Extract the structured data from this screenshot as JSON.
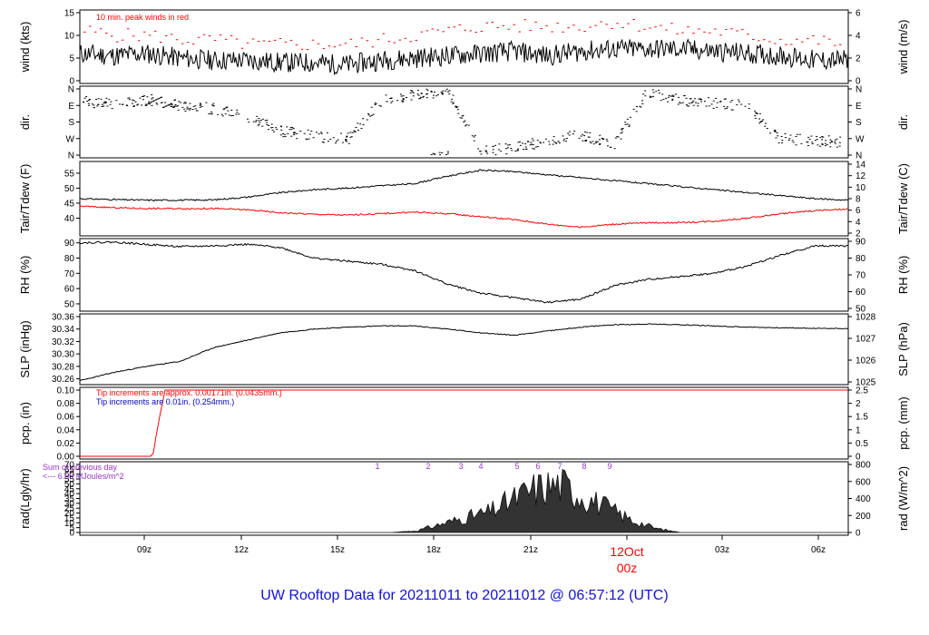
{
  "title": "UW Rooftop Data for 20211011  to  20211012 @ 06:57:12  (UTC)",
  "colors": {
    "wind": "#000000",
    "peak": "#ff0000",
    "tdew": "#ff0000",
    "pcp": "#ff0000",
    "note_blue": "#0000cc",
    "rad_note": "#9933cc",
    "date_label": "#ff0000",
    "title": "#1010dd"
  },
  "chart_data": [
    {
      "type": "line",
      "panel": "wind",
      "ylabel_left": "wind (kts)",
      "ylabel_right": "wind (m/s)",
      "ylim": [
        0,
        15
      ],
      "yticks_left": [
        "0",
        "5",
        "10",
        "15"
      ],
      "yticks_right": [
        "0",
        "2",
        "4",
        "6"
      ],
      "annotation": "10 min. peak winds in red",
      "series": [
        {
          "values": [
            6,
            5.5,
            6,
            5,
            4.5,
            4.5,
            4,
            4,
            3.5,
            4.5,
            5,
            5.5,
            6,
            6.5,
            5.5,
            6.5,
            7,
            7,
            7,
            6.5,
            6,
            5.5,
            4.5,
            4.5
          ]
        },
        {
          "values": [
            11,
            10,
            10,
            9,
            9,
            8,
            8,
            8,
            8,
            9,
            10,
            11,
            12,
            12,
            12,
            12,
            13,
            12,
            11,
            11,
            10,
            9,
            9,
            8
          ]
        }
      ]
    },
    {
      "type": "scatter",
      "panel": "dir",
      "ylabel_left": "dir.",
      "ylabel_right": "dir.",
      "yticks_left": [
        "N",
        "W",
        "S",
        "E",
        "N"
      ],
      "yticks_right": [
        "N",
        "W",
        "S",
        "E",
        "N"
      ],
      "series": [
        {
          "values": [
            290,
            280,
            300,
            270,
            250,
            200,
            130,
            100,
            90,
            300,
            330,
            350,
            20,
            40,
            80,
            110,
            60,
            340,
            300,
            280,
            270,
            90,
            80,
            70
          ]
        }
      ]
    },
    {
      "type": "line",
      "panel": "temperature",
      "ylabel_left": "Tair/Tdew (F)",
      "ylabel_right": "Tair/Tdew (C)",
      "ylim": [
        35,
        58
      ],
      "yticks_left": [
        "40",
        "45",
        "50",
        "55"
      ],
      "yticks_right": [
        "2",
        "4",
        "6",
        "8",
        "10",
        "12",
        "14"
      ],
      "series": [
        {
          "values": [
            46.5,
            46.2,
            46.0,
            46.0,
            46.1,
            47.0,
            48.5,
            49.5,
            50.0,
            50.8,
            51.5,
            54.0,
            56.0,
            55.5,
            54.5,
            53.5,
            52.5,
            51.5,
            50.5,
            49.5,
            48.5,
            47.5,
            46.5,
            46.0
          ]
        },
        {
          "values": [
            44.0,
            43.5,
            43.2,
            43.2,
            43.2,
            42.8,
            41.8,
            41.3,
            41.0,
            41.5,
            42.0,
            41.5,
            40.5,
            39.5,
            38.0,
            37.0,
            38.0,
            38.5,
            38.5,
            39.0,
            40.0,
            41.5,
            42.5,
            43.0
          ]
        }
      ]
    },
    {
      "type": "line",
      "panel": "rh",
      "ylabel_left": "RH (%)",
      "ylabel_right": "RH (%)",
      "ylim": [
        47,
        91
      ],
      "yticks_left": [
        "50",
        "60",
        "70",
        "80",
        "90"
      ],
      "yticks_right": [
        "50",
        "60",
        "70",
        "80",
        "90"
      ],
      "series": [
        {
          "values": [
            90,
            90.5,
            89,
            87.5,
            88,
            89,
            87,
            80,
            78,
            76,
            72,
            63,
            57,
            54,
            51,
            53,
            62,
            66,
            68,
            70,
            75,
            82,
            88,
            88
          ]
        }
      ]
    },
    {
      "type": "line",
      "panel": "slp",
      "ylabel_left": "SLP (inHg)",
      "ylabel_right": "SLP (hPa)",
      "ylim": [
        30.255,
        30.36
      ],
      "yticks_left": [
        "30.26",
        "30.28",
        "30.30",
        "30.32",
        "30.34",
        "30.36"
      ],
      "yticks_right": [
        "1025",
        "1026",
        "1027",
        "1028"
      ],
      "series": [
        {
          "values": [
            30.257,
            30.27,
            30.28,
            30.288,
            30.31,
            30.322,
            30.334,
            30.34,
            30.343,
            30.345,
            30.345,
            30.34,
            30.334,
            30.33,
            30.337,
            30.343,
            30.347,
            30.348,
            30.347,
            30.345,
            30.343,
            30.342,
            30.341,
            30.341
          ]
        }
      ]
    },
    {
      "type": "line",
      "panel": "pcp",
      "ylabel_left": "pcp. (in)",
      "ylabel_right": "pcp. (mm)",
      "ylim": [
        0,
        0.1
      ],
      "yticks_left": [
        "0.00",
        "0.02",
        "0.04",
        "0.06",
        "0.08",
        "0.10"
      ],
      "yticks_right": [
        "0",
        "0.5",
        "1",
        "1.5",
        "2",
        "2.5"
      ],
      "annotation_red": "Tip increments are approx. 0.00171in. (0.0435mm.)",
      "annotation_blue": "Tip increments are 0.01in. (0.254mm.)",
      "series": [
        {
          "values": [
            0,
            0,
            0,
            0.075,
            0.1,
            0.1,
            0.1,
            0.1,
            0.1,
            0.1,
            0.1,
            0.1,
            0.1,
            0.1,
            0.1,
            0.1,
            0.1,
            0.1,
            0.1,
            0.1,
            0.1,
            0.1,
            0.1,
            0.1
          ]
        }
      ]
    },
    {
      "type": "area",
      "panel": "rad",
      "ylabel_left": "rad(Lgly/hr)",
      "ylabel_right": "rad (W/m^2)",
      "ylim": [
        0,
        70
      ],
      "yticks_left": [
        "0",
        "5",
        "10",
        "15",
        "20",
        "25",
        "30",
        "35",
        "40",
        "45",
        "50",
        "55",
        "60",
        "65",
        "70"
      ],
      "yticks_right": [
        "0",
        "200",
        "400",
        "600",
        "800"
      ],
      "note_line1": "Sum of previous day",
      "note_line2": "<--- 6.00 MJoules/m^2",
      "markers": [
        "1",
        "2",
        "3",
        "4",
        "5",
        "6",
        "7",
        "8",
        "9"
      ],
      "series": [
        {
          "values": [
            0,
            0,
            0,
            0,
            0,
            0,
            0,
            0,
            0,
            0,
            0,
            0,
            0,
            0,
            2,
            10,
            18,
            25,
            40,
            55,
            60,
            45,
            30,
            15,
            5,
            0,
            0,
            0,
            0,
            0,
            0,
            0,
            0
          ]
        }
      ]
    }
  ],
  "xaxis": {
    "ticks": [
      "09z",
      "12z",
      "15z",
      "18z",
      "21z",
      "00z",
      "03z",
      "06z"
    ],
    "date_label": "12Oct",
    "date_sub": "00z"
  }
}
